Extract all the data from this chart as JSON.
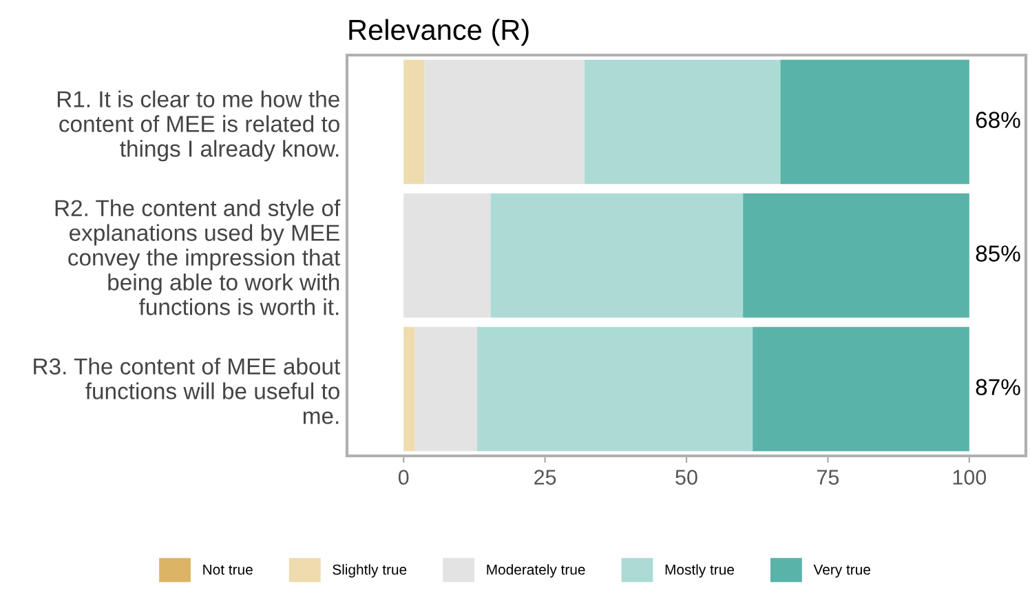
{
  "chart_data": {
    "type": "bar",
    "orientation": "horizontal",
    "stacked": true,
    "title": "Relevance (R)",
    "categories": [
      "R1. It is clear to me how the\ncontent of MEE is related to\nthings I already know.",
      "R2. The content and style of\nexplanations used by MEE\nconvey the impression that\nbeing able to work with\nfunctions is worth it.",
      "R3. The content of MEE about\nfunctions will be useful to\nme."
    ],
    "series": [
      {
        "name": "Not true",
        "color": "#dcb466",
        "values": [
          0,
          0,
          0
        ]
      },
      {
        "name": "Slightly true",
        "color": "#eedcaf",
        "values": [
          3.7,
          0,
          2
        ]
      },
      {
        "name": "Moderately true",
        "color": "#e3e3e3",
        "values": [
          28.3,
          15.4,
          11
        ]
      },
      {
        "name": "Mostly true",
        "color": "#acdbd6",
        "values": [
          34.6,
          44.6,
          48.7
        ]
      },
      {
        "name": "Very true",
        "color": "#5ab3a9",
        "values": [
          33.4,
          40,
          38.3
        ]
      }
    ],
    "annotations": [
      "68%",
      "85%",
      "87%"
    ],
    "xlim": [
      -10,
      110
    ],
    "xticks": [
      0,
      25,
      50,
      75,
      100
    ],
    "grid": false,
    "legend": "bottom"
  }
}
